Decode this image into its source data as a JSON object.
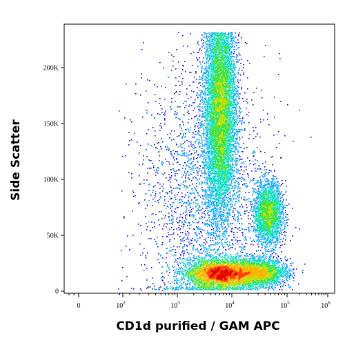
{
  "chart_data": {
    "type": "scatter",
    "subtype": "flow-cytometry-density-dot-plot",
    "xlabel": "CD1d purified / GAM APC",
    "ylabel": "Side Scatter",
    "x_scale": "biexponential",
    "xlim": [
      -200,
      1200000
    ],
    "ylim": [
      0,
      235000
    ],
    "grid": false,
    "x_ticks": [
      {
        "value": 0,
        "base": "0",
        "exp": ""
      },
      {
        "value": 100,
        "base": "10",
        "exp": "2"
      },
      {
        "value": 1000,
        "base": "10",
        "exp": "3"
      },
      {
        "value": 10000,
        "base": "10",
        "exp": "4"
      },
      {
        "value": 100000,
        "base": "10",
        "exp": "5"
      },
      {
        "value": 1000000,
        "base": "10",
        "exp": "6"
      }
    ],
    "y_ticks": [
      {
        "value": 0,
        "label": "0"
      },
      {
        "value": 50000,
        "label": "50K"
      },
      {
        "value": 100000,
        "label": "100K"
      },
      {
        "value": 150000,
        "label": "150K"
      },
      {
        "value": 200000,
        "label": "200K"
      }
    ],
    "density_colormap": [
      "#0000ff",
      "#00a0ff",
      "#00e0c0",
      "#40e040",
      "#c0e000",
      "#ffb000",
      "#ff4000",
      "#e00000"
    ],
    "populations": [
      {
        "center_x": 6000,
        "center_y": 16000,
        "spread_log_x": 0.32,
        "spread_y": 6500,
        "relative_size": 1.0,
        "peak_density": "high"
      },
      {
        "center_x": 30000,
        "center_y": 17000,
        "spread_log_x": 0.25,
        "spread_y": 6000,
        "relative_size": 0.35,
        "peak_density": "medium"
      },
      {
        "center_x": 6000,
        "center_y": 165000,
        "spread_log_x": 0.14,
        "spread_y": 48000,
        "relative_size": 1.1,
        "peak_density": "medium"
      },
      {
        "center_x": 45000,
        "center_y": 70000,
        "spread_log_x": 0.13,
        "spread_y": 14000,
        "relative_size": 0.3,
        "peak_density": "medium-low"
      },
      {
        "center_x": 3000,
        "center_y": 90000,
        "spread_log_x": 0.55,
        "spread_y": 60000,
        "relative_size": 0.35,
        "peak_density": "low"
      }
    ]
  }
}
